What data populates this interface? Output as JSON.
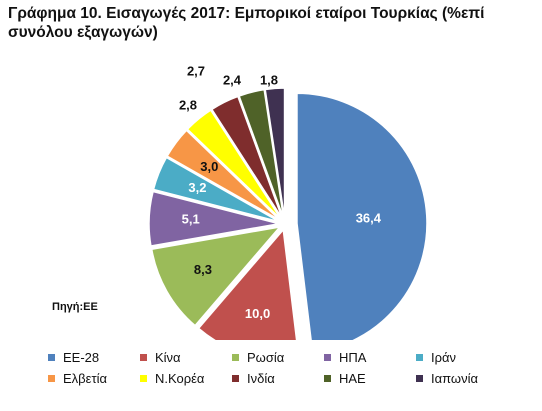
{
  "chart_data": {
    "type": "pie",
    "title": "Γράφημα 10. Εισαγωγές 2017: Εμπορικοί εταίροι Τουρκίας (%επί συνόλου εξαγωγών)",
    "source": "Πηγή:ΕΕ",
    "slices": [
      {
        "label": "ΕΕ-28",
        "value": 36.4,
        "value_label": "36,4",
        "color": "#4f81bd",
        "label_color": "#ffffff"
      },
      {
        "label": "Κίνα",
        "value": 10.0,
        "value_label": "10,0",
        "color": "#c0504d",
        "label_color": "#ffffff"
      },
      {
        "label": "Ρωσία",
        "value": 8.3,
        "value_label": "8,3",
        "color": "#9bbb59",
        "label_color": "#111111"
      },
      {
        "label": "ΗΠΑ",
        "value": 5.1,
        "value_label": "5,1",
        "color": "#8064a2",
        "label_color": "#ffffff"
      },
      {
        "label": "Ιράν",
        "value": 3.2,
        "value_label": "3,2",
        "color": "#4bacc6",
        "label_color": "#ffffff"
      },
      {
        "label": "Ελβετία",
        "value": 3.0,
        "value_label": "3,0",
        "color": "#f79646",
        "label_color": "#111111"
      },
      {
        "label": "Ν.Κορέα",
        "value": 2.8,
        "value_label": "2,8",
        "color": "#ffff00",
        "label_color": "#111111"
      },
      {
        "label": "Ινδία",
        "value": 2.7,
        "value_label": "2,7",
        "color": "#7f2d2d",
        "label_color": "#111111"
      },
      {
        "label": "ΗΑΕ",
        "value": 2.4,
        "value_label": "2,4",
        "color": "#4f6228",
        "label_color": "#111111"
      },
      {
        "label": "Ιαπωνία",
        "value": 1.8,
        "value_label": "1,8",
        "color": "#3f3151",
        "label_color": "#111111"
      }
    ],
    "legend_position": "bottom"
  }
}
